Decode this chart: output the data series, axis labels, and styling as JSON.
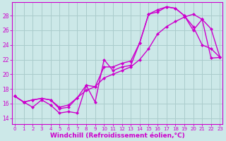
{
  "bg_color": "#cce8e8",
  "grid_color": "#aacccc",
  "line_color": "#cc00cc",
  "marker": "D",
  "markersize": 2.5,
  "linewidth": 1.0,
  "xlabel": "Windchill (Refroidissement éolien,°C)",
  "xlabel_fontsize": 6.5,
  "ylabel_ticks": [
    14,
    16,
    18,
    20,
    22,
    24,
    26,
    28
  ],
  "xticks": [
    0,
    1,
    2,
    3,
    4,
    5,
    6,
    7,
    8,
    9,
    10,
    11,
    12,
    13,
    14,
    15,
    16,
    17,
    18,
    19,
    20,
    21,
    22,
    23
  ],
  "xlim": [
    -0.3,
    23.3
  ],
  "ylim": [
    13.2,
    29.8
  ],
  "line1_x": [
    0,
    1,
    2,
    3,
    4,
    5,
    6,
    7,
    8,
    9,
    10,
    11,
    12,
    13,
    14,
    15,
    16,
    17,
    18,
    19,
    20,
    21,
    22,
    23
  ],
  "line1_y": [
    17.0,
    16.2,
    15.5,
    16.5,
    15.8,
    14.7,
    14.9,
    14.7,
    18.5,
    16.2,
    22.0,
    20.5,
    21.0,
    21.2,
    24.3,
    28.2,
    28.5,
    29.2,
    29.0,
    28.0,
    26.0,
    27.5,
    26.2,
    22.3
  ],
  "line2_x": [
    0,
    1,
    2,
    3,
    4,
    5,
    6,
    7,
    8,
    9,
    10,
    11,
    12,
    13,
    14,
    15,
    16,
    17,
    18,
    19,
    20,
    21,
    22,
    23
  ],
  "line2_y": [
    17.0,
    16.2,
    16.5,
    16.7,
    16.5,
    15.3,
    15.5,
    16.8,
    18.5,
    18.3,
    21.0,
    21.0,
    21.5,
    21.8,
    24.3,
    28.2,
    28.8,
    29.2,
    29.0,
    28.0,
    26.5,
    24.0,
    23.5,
    22.3
  ],
  "line3_x": [
    0,
    1,
    2,
    3,
    4,
    5,
    6,
    7,
    8,
    9,
    10,
    11,
    12,
    13,
    14,
    15,
    16,
    17,
    18,
    19,
    20,
    21,
    22,
    23
  ],
  "line3_y": [
    17.0,
    16.2,
    16.5,
    16.7,
    16.5,
    15.5,
    15.8,
    16.8,
    17.8,
    18.3,
    19.5,
    20.0,
    20.5,
    21.0,
    22.0,
    23.5,
    25.5,
    26.5,
    27.2,
    27.8,
    28.2,
    27.5,
    22.2,
    22.3
  ]
}
